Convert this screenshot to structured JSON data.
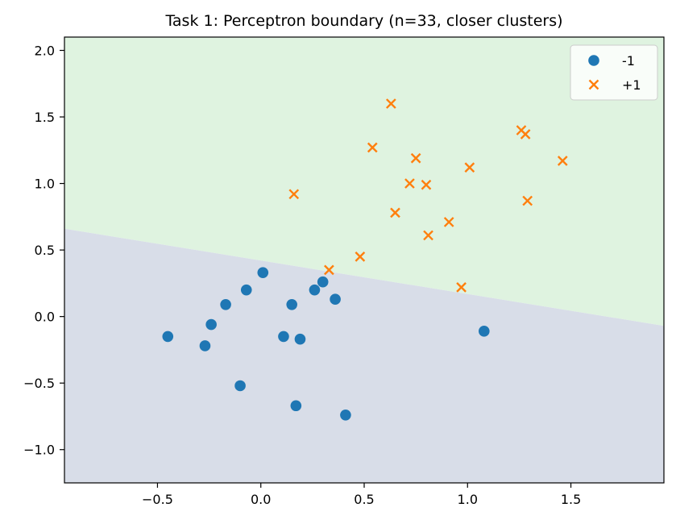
{
  "chart_data": {
    "type": "scatter",
    "title": "Task 1: Perceptron boundary (n=33, closer clusters)",
    "xlabel": "",
    "ylabel": "",
    "xlim": [
      -0.95,
      1.95
    ],
    "ylim": [
      -1.25,
      2.1
    ],
    "xticks": [
      -0.5,
      0.0,
      0.5,
      1.0,
      1.5
    ],
    "xtick_labels": [
      "−0.5",
      "0.0",
      "0.5",
      "1.0",
      "1.5"
    ],
    "yticks": [
      -1.0,
      -0.5,
      0.0,
      0.5,
      1.0,
      1.5,
      2.0
    ],
    "ytick_labels": [
      "−1.0",
      "−0.5",
      "0.0",
      "0.5",
      "1.0",
      "1.5",
      "2.0"
    ],
    "grid": false,
    "legend_position": "top-right",
    "decision_boundary": {
      "description": "linear",
      "points": [
        [
          -0.95,
          0.66
        ],
        [
          1.95,
          -0.07
        ]
      ],
      "region_below_label": "-1",
      "region_above_label": "+1",
      "region_below_color": "#d8dde8",
      "region_above_color": "#dff3e0"
    },
    "series": [
      {
        "name": "-1",
        "marker": "circle",
        "color": "#1f77b4",
        "points": [
          [
            -0.45,
            -0.15
          ],
          [
            -0.27,
            -0.22
          ],
          [
            -0.24,
            -0.06
          ],
          [
            -0.17,
            0.09
          ],
          [
            -0.1,
            -0.52
          ],
          [
            -0.07,
            0.2
          ],
          [
            0.01,
            0.33
          ],
          [
            0.11,
            -0.15
          ],
          [
            0.15,
            0.09
          ],
          [
            0.17,
            -0.67
          ],
          [
            0.19,
            -0.17
          ],
          [
            0.26,
            0.2
          ],
          [
            0.3,
            0.26
          ],
          [
            0.36,
            0.13
          ],
          [
            0.41,
            -0.74
          ],
          [
            1.08,
            -0.11
          ]
        ]
      },
      {
        "name": "+1",
        "marker": "x",
        "color": "#ff7f0e",
        "points": [
          [
            0.16,
            0.92
          ],
          [
            0.33,
            0.35
          ],
          [
            0.48,
            0.45
          ],
          [
            0.54,
            1.27
          ],
          [
            0.63,
            1.6
          ],
          [
            0.65,
            0.78
          ],
          [
            0.72,
            1.0
          ],
          [
            0.75,
            1.19
          ],
          [
            0.8,
            0.99
          ],
          [
            0.81,
            0.61
          ],
          [
            0.91,
            0.71
          ],
          [
            0.97,
            0.22
          ],
          [
            1.01,
            1.12
          ],
          [
            1.26,
            1.4
          ],
          [
            1.28,
            1.37
          ],
          [
            1.29,
            0.87
          ],
          [
            1.46,
            1.17
          ]
        ]
      }
    ]
  }
}
